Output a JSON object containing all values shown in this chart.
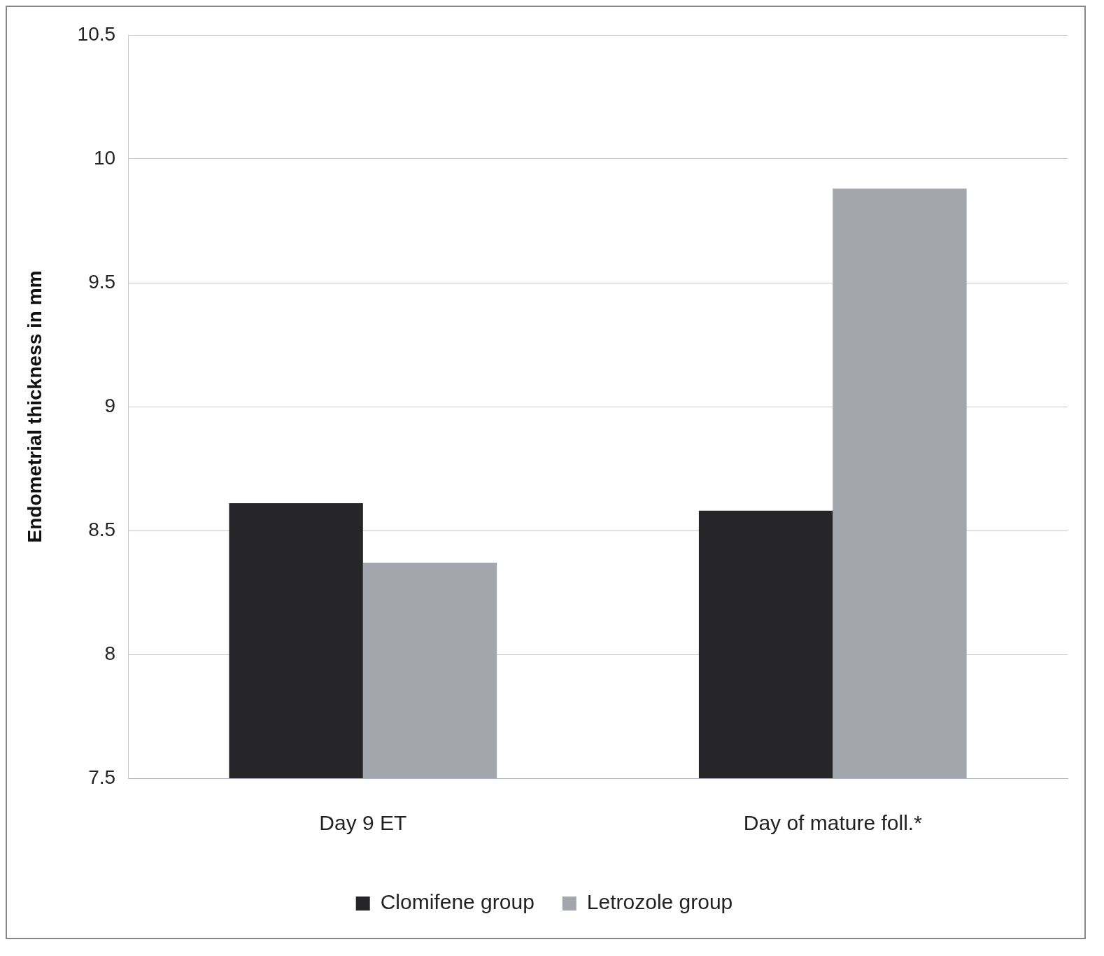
{
  "chart_data": {
    "type": "bar",
    "ylabel": "Endometrial thickness in mm",
    "categories": [
      "Day 9 ET",
      "Day of mature foll.*"
    ],
    "series": [
      {
        "name": "Clomifene group",
        "color": "#262628",
        "values": [
          8.61,
          8.58
        ]
      },
      {
        "name": "Letrozole group",
        "color": "#a4a6ae",
        "values": [
          8.37,
          9.88
        ]
      }
    ],
    "ylim": [
      7.5,
      10.5
    ],
    "yticks": [
      7.5,
      8,
      8.5,
      9,
      9.5,
      10,
      10.5
    ],
    "grid": "y",
    "legend": "bottom"
  }
}
